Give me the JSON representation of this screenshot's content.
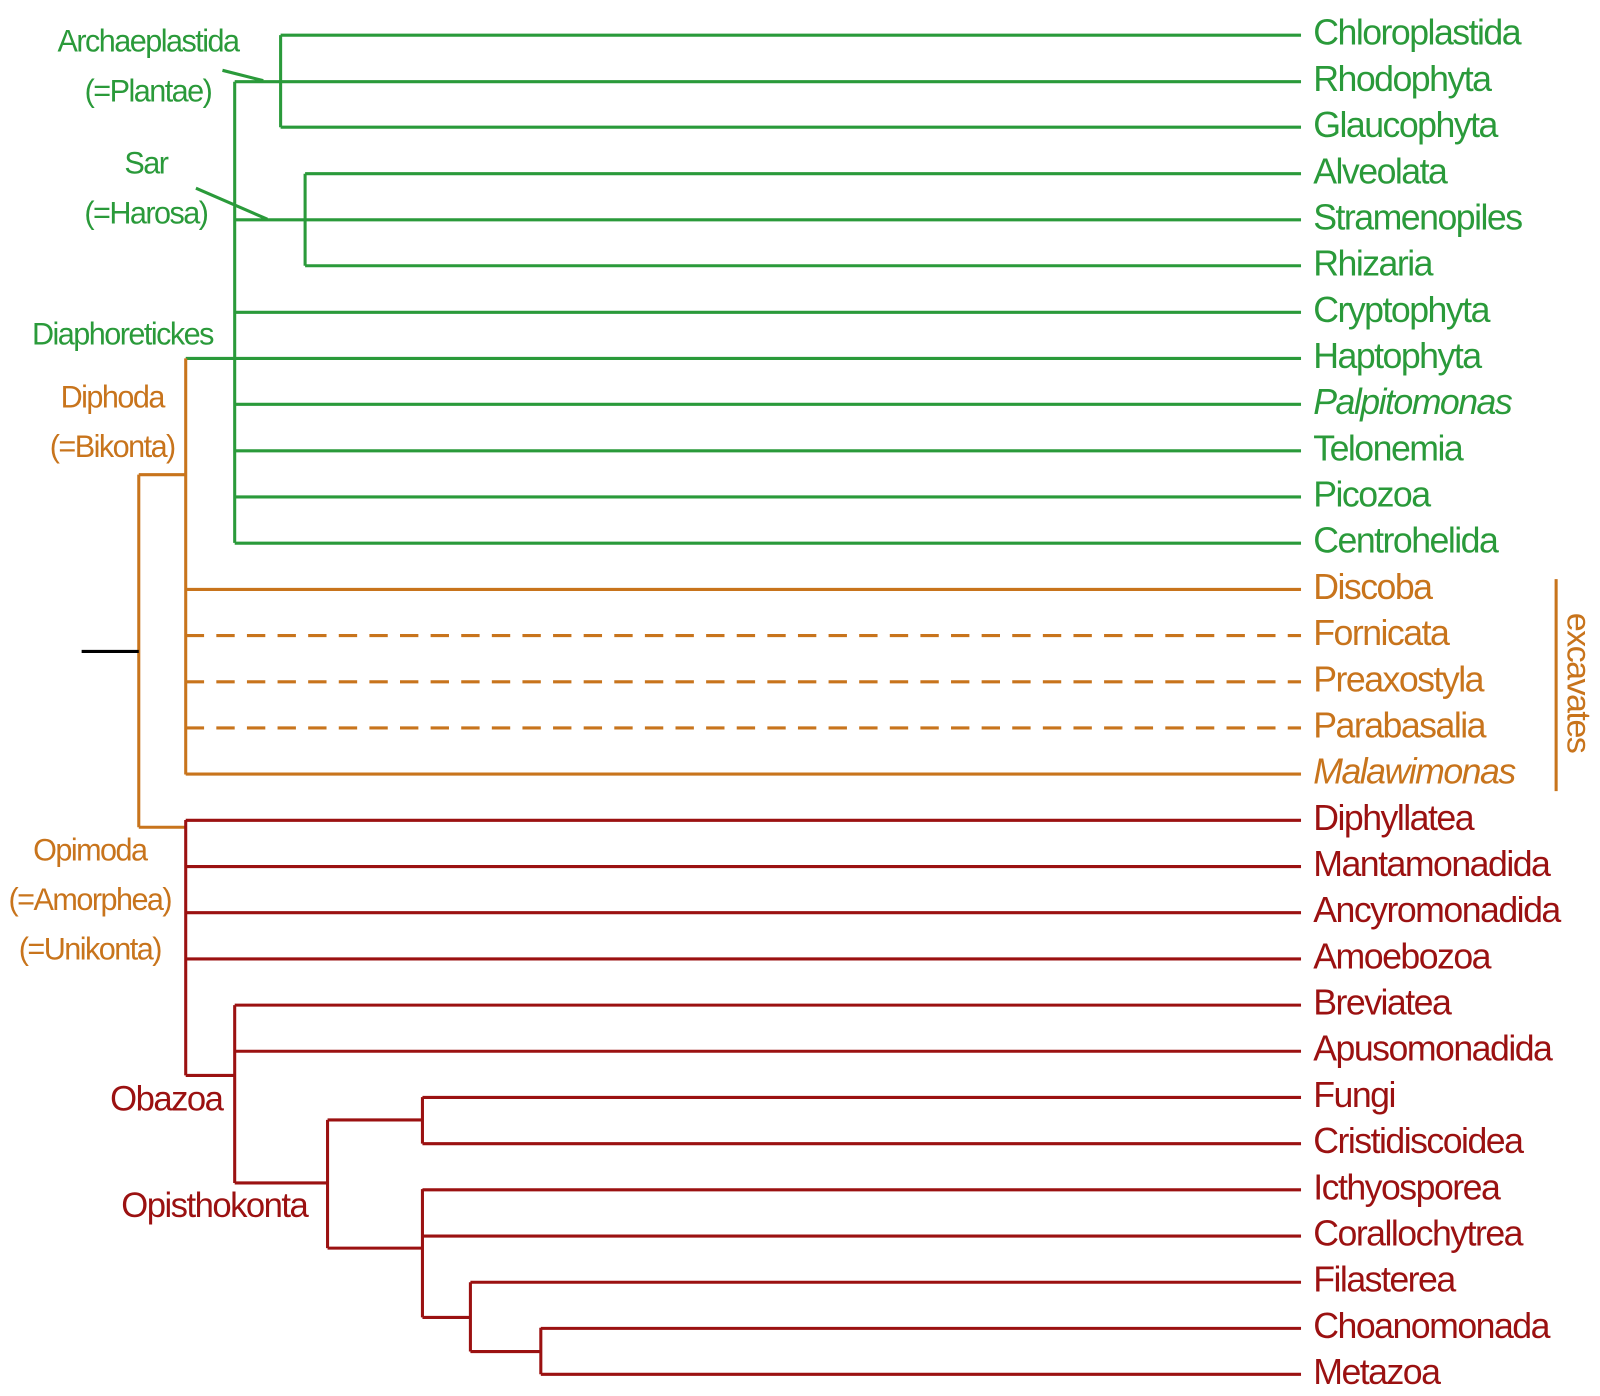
{
  "leaves": [
    "Chloroplastida",
    "Rhodophyta",
    "Glaucophyta",
    "Alveolata",
    "Stramenopiles",
    "Rhizaria",
    "Cryptophyta",
    "Haptophyta",
    "Palpitomonas",
    "Telonemia",
    "Picozoa",
    "Centrohelida",
    "Discoba",
    "Fornicata",
    "Preaxostyla",
    "Parabasalia",
    "Malawimonas",
    "Diphyllatea",
    "Mantamonadida",
    "Ancyromonadida",
    "Amoebozoa",
    "Breviatea",
    "Apusomonadida",
    "Fungi",
    "Cristidiscoidea",
    "Icthyosporea",
    "Corallochytrea",
    "Filasterea",
    "Choanomonada",
    "Metazoa"
  ],
  "clades": {
    "archaeplastida": [
      "Archaeplastida",
      "(=Plantae)"
    ],
    "sar": [
      "Sar",
      "(=Harosa)"
    ],
    "diaphoretickes": [
      "Diaphoretickes"
    ],
    "diphoda": [
      "Diphoda",
      "(=Bikonta)"
    ],
    "opimoda": [
      "Opimoda",
      "(=Amorphea)",
      "(=Unikonta)"
    ],
    "obazoa": [
      "Obazoa"
    ],
    "opisthokonta": [
      "Opisthokonta"
    ]
  },
  "bracket_label": "excavates"
}
